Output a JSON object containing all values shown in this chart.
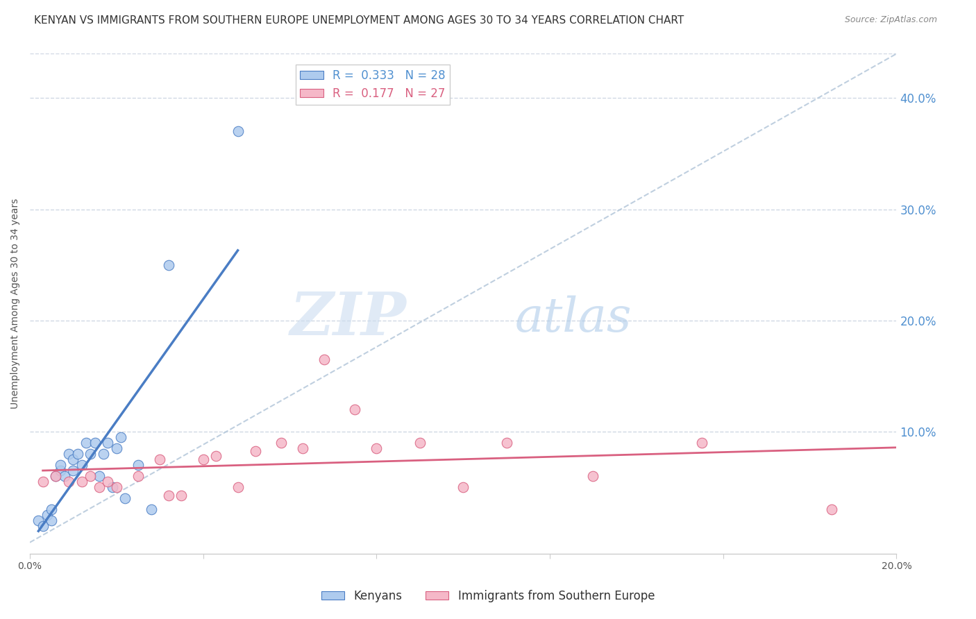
{
  "title": "KENYAN VS IMMIGRANTS FROM SOUTHERN EUROPE UNEMPLOYMENT AMONG AGES 30 TO 34 YEARS CORRELATION CHART",
  "source": "Source: ZipAtlas.com",
  "ylabel": "Unemployment Among Ages 30 to 34 years",
  "xlim": [
    0.0,
    0.2
  ],
  "ylim": [
    -0.01,
    0.44
  ],
  "xticks": [
    0.0,
    0.04,
    0.08,
    0.12,
    0.16,
    0.2
  ],
  "yticks_right": [
    0.1,
    0.2,
    0.3,
    0.4
  ],
  "ytick_right_labels": [
    "10.0%",
    "20.0%",
    "30.0%",
    "40.0%"
  ],
  "blue_color": "#aecbee",
  "blue_line_color": "#4a7dc4",
  "pink_color": "#f5b8c8",
  "pink_line_color": "#d96080",
  "ref_line_color": "#b0c4d8",
  "R_blue": 0.333,
  "N_blue": 28,
  "R_pink": 0.177,
  "N_pink": 27,
  "legend_label_blue": "Kenyans",
  "legend_label_pink": "Immigrants from Southern Europe",
  "blue_x": [
    0.002,
    0.003,
    0.004,
    0.005,
    0.005,
    0.006,
    0.007,
    0.007,
    0.008,
    0.009,
    0.01,
    0.01,
    0.011,
    0.012,
    0.013,
    0.014,
    0.015,
    0.016,
    0.017,
    0.018,
    0.019,
    0.02,
    0.021,
    0.022,
    0.025,
    0.028,
    0.032,
    0.048
  ],
  "blue_y": [
    0.02,
    0.015,
    0.025,
    0.03,
    0.02,
    0.06,
    0.065,
    0.07,
    0.06,
    0.08,
    0.065,
    0.075,
    0.08,
    0.07,
    0.09,
    0.08,
    0.09,
    0.06,
    0.08,
    0.09,
    0.05,
    0.085,
    0.095,
    0.04,
    0.07,
    0.03,
    0.25,
    0.37
  ],
  "pink_x": [
    0.003,
    0.006,
    0.009,
    0.012,
    0.014,
    0.016,
    0.018,
    0.02,
    0.025,
    0.03,
    0.032,
    0.035,
    0.04,
    0.043,
    0.048,
    0.052,
    0.058,
    0.063,
    0.068,
    0.075,
    0.08,
    0.09,
    0.1,
    0.11,
    0.13,
    0.155,
    0.185
  ],
  "pink_y": [
    0.055,
    0.06,
    0.055,
    0.055,
    0.06,
    0.05,
    0.055,
    0.05,
    0.06,
    0.075,
    0.042,
    0.042,
    0.075,
    0.078,
    0.05,
    0.082,
    0.09,
    0.085,
    0.165,
    0.12,
    0.085,
    0.09,
    0.05,
    0.09,
    0.06,
    0.09,
    0.03
  ],
  "watermark_zip": "ZIP",
  "watermark_atlas": "atlas",
  "background_color": "#ffffff",
  "grid_color": "#d0d8e4",
  "title_fontsize": 11,
  "axis_label_fontsize": 10,
  "tick_fontsize": 10,
  "legend_fontsize": 12
}
